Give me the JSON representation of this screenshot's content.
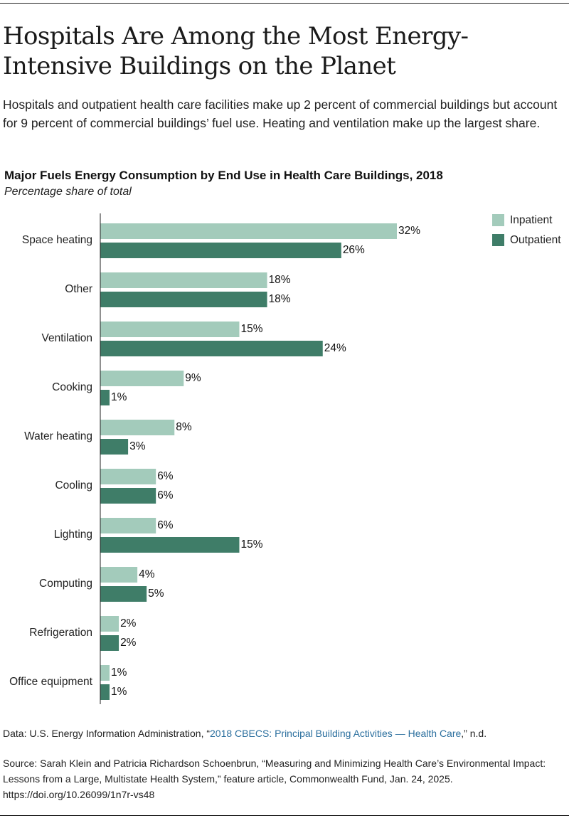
{
  "headline": "Hospitals Are Among the Most Energy-Intensive Buildings on the Planet",
  "dek": "Hospitals and outpatient health care facilities make up 2 percent of commercial buildings but account for 9 percent of commercial buildings’ fuel use. Heating and ventilation make up the largest share.",
  "colors": {
    "inpatient": "#a3cbbb",
    "outpatient": "#3f7d68",
    "axis": "#222222"
  },
  "chart_data": {
    "type": "bar",
    "orientation": "horizontal",
    "title": "Major Fuels Energy Consumption by End Use in Health Care Buildings, 2018",
    "subtitle": "Percentage share of total",
    "categories": [
      "Space heating",
      "Other",
      "Ventilation",
      "Cooking",
      "Water heating",
      "Cooling",
      "Lighting",
      "Computing",
      "Refrigeration",
      "Office equipment"
    ],
    "series": [
      {
        "name": "Inpatient",
        "values": [
          32,
          18,
          15,
          9,
          8,
          6,
          6,
          4,
          2,
          1
        ]
      },
      {
        "name": "Outpatient",
        "values": [
          26,
          18,
          24,
          1,
          3,
          6,
          15,
          5,
          2,
          1
        ]
      }
    ],
    "value_suffix": "%",
    "xlim": [
      0,
      32
    ],
    "grid": false,
    "legend_position": "top-right"
  },
  "notes": {
    "data_prefix": "Data: U.S. Energy Information Administration, “",
    "data_link": "2018 CBECS: Principal Building Activities — Health Care",
    "data_suffix": ",” n.d.",
    "source": "Source: Sarah Klein and Patricia Richardson Schoenbrun, “Measuring and Minimizing Health Care’s Environmental Impact: Lessons from a Large, Multistate Health System,” feature article, Commonwealth Fund, Jan. 24, 2025.",
    "doi": "https://doi.org/10.26099/1n7r-vs48"
  }
}
